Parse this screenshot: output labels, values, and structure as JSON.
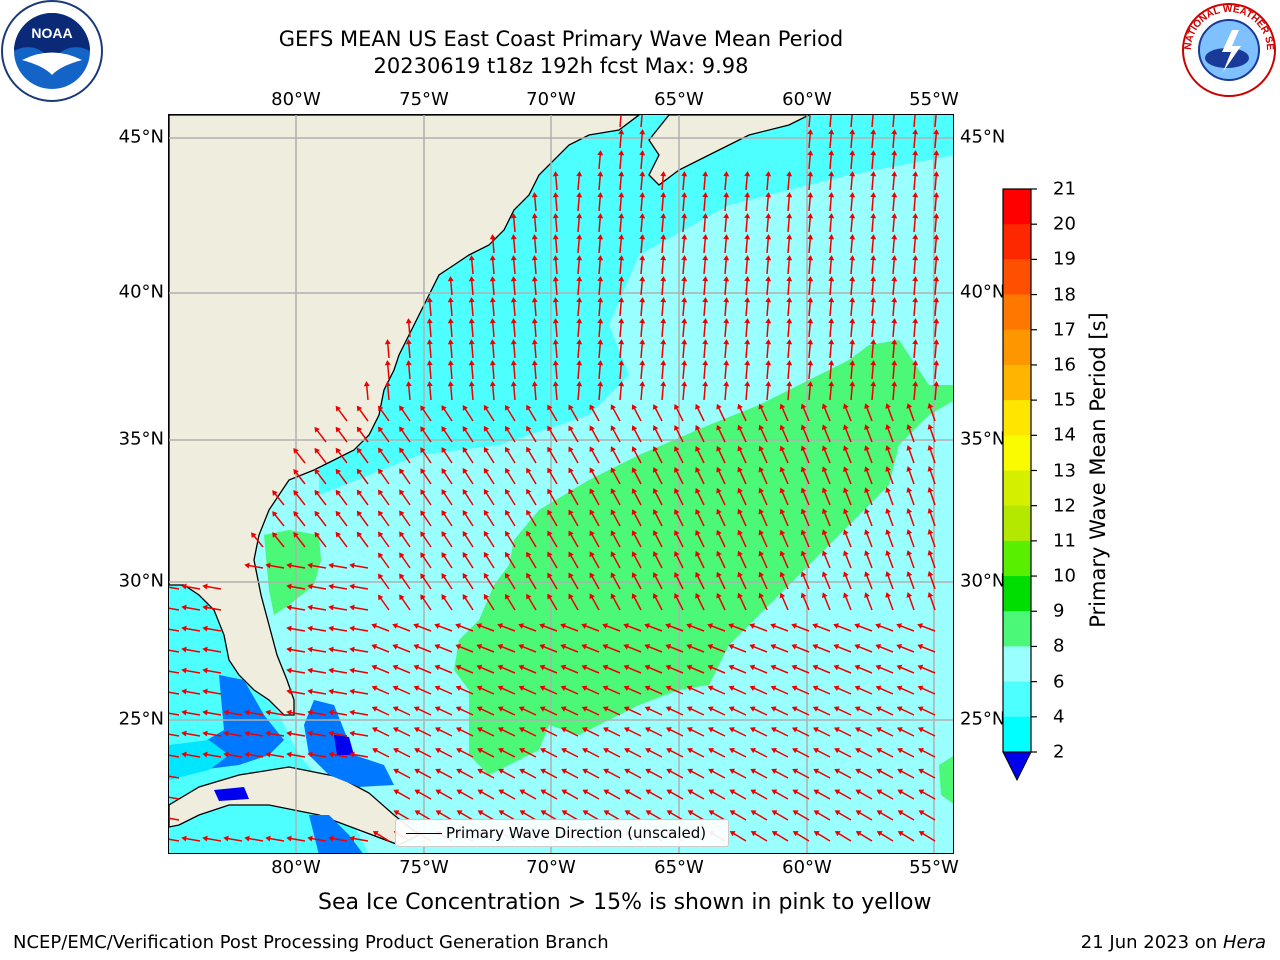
{
  "title": {
    "line1": "GEFS MEAN US East Coast Primary Wave Mean Period",
    "line2": "20230619 t18z 192h fcst   Max: 9.98"
  },
  "map": {
    "longitude_ticks": [
      "80°W",
      "75°W",
      "70°W",
      "65°W",
      "60°W",
      "55°W"
    ],
    "latitude_ticks": [
      "45°N",
      "40°N",
      "35°N",
      "30°N",
      "25°N"
    ],
    "land_color": "#efedde",
    "grid_color": "#b0b0b0",
    "arrow_color": "#ee0000"
  },
  "legend": {
    "label": "Primary Wave Direction (unscaled)"
  },
  "colorbar": {
    "title": "Primary Wave Mean Period [s]",
    "tick_labels": [
      "21",
      "20",
      "19",
      "18",
      "17",
      "16",
      "15",
      "14",
      "13",
      "12",
      "11",
      "10",
      "9",
      "8",
      "6",
      "4",
      "2"
    ],
    "colors": [
      "#fe0000",
      "#fe2800",
      "#fe5000",
      "#fe7800",
      "#fe9600",
      "#feb400",
      "#fee600",
      "#fafa00",
      "#d4f000",
      "#b4e800",
      "#58f000",
      "#00dd00",
      "#4cf878",
      "#99ffff",
      "#4dffff",
      "#00ffff",
      "#00e6ff",
      "#0078ff",
      "#0000ee"
    ]
  },
  "notes": {
    "sea_ice": "Sea Ice Concentration > 15% is shown in pink to yellow"
  },
  "footer": {
    "left": "NCEP/EMC/Verification Post Processing Product Generation Branch",
    "date": "21 Jun 2023 on ",
    "machine": "Hera"
  },
  "logos": {
    "noaa": "NOAA",
    "nws": "NATIONAL WEATHER SERVICE"
  }
}
